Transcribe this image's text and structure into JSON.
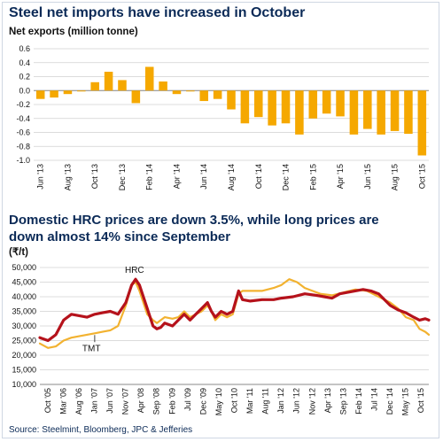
{
  "header": {
    "title1": "Steel net imports have increased in October",
    "sub1": "Net exports (million tonne)",
    "title2": "Domestic HRC prices are down 3.5%, while long prices are down almost 14% since September",
    "sub2": "(₹/t)",
    "source": "Source: Steelmint, Bloomberg, JPC & Jefferies"
  },
  "colors": {
    "bar": "#f5a800",
    "hrc": "#b5121b",
    "tmt": "#f2b230",
    "title": "#0b2a57"
  },
  "chart_data": [
    {
      "type": "bar",
      "ylabel": "Net exports (million tonne)",
      "ylim": [
        -1.0,
        0.6
      ],
      "yticks": [
        "0.6",
        "0.4",
        "0.2",
        "0.0",
        "-0.2",
        "-0.4",
        "-0.6",
        "-0.8",
        "-1.0"
      ],
      "grid": true,
      "categories": [
        "Jun '13",
        "Jul '13",
        "Aug '13",
        "Sep '13",
        "Oct '13",
        "Nov '13",
        "Dec '13",
        "Jan '14",
        "Feb '14",
        "Mar '14",
        "Apr '14",
        "May '14",
        "Jun '14",
        "Jul '14",
        "Aug '14",
        "Sep '14",
        "Oct '14",
        "Nov '14",
        "Dec '14",
        "Jan '15",
        "Feb '15",
        "Mar '15",
        "Apr '15",
        "May '15",
        "Jun '15",
        "Jul '15",
        "Aug '15",
        "Sep '15",
        "Oct '15"
      ],
      "xtick_labels": [
        "Jun '13",
        "Aug '13",
        "Oct '13",
        "Dec '13",
        "Feb '14",
        "Apr '14",
        "Jun '14",
        "Aug '14",
        "Oct '14",
        "Dec '14",
        "Feb '15",
        "Apr '15",
        "Jun '15",
        "Aug '15",
        "Oct '15"
      ],
      "values": [
        -0.12,
        -0.1,
        -0.05,
        0.0,
        0.12,
        0.27,
        0.15,
        -0.18,
        0.34,
        0.13,
        -0.05,
        0.0,
        -0.15,
        -0.12,
        -0.27,
        -0.47,
        -0.38,
        -0.5,
        -0.47,
        -0.63,
        -0.4,
        -0.33,
        -0.37,
        -0.63,
        -0.55,
        -0.63,
        -0.58,
        -0.62,
        -0.93
      ]
    },
    {
      "type": "line",
      "ylim": [
        10000,
        50000
      ],
      "yticks": [
        "50,000",
        "45,000",
        "40,000",
        "35,000",
        "30,000",
        "25,000",
        "20,000",
        "15,000",
        "10,000"
      ],
      "grid": true,
      "xlim": [
        2005.79,
        2015.79
      ],
      "x_tick_labels": [
        "Oct '05",
        "Mar '06",
        "Aug '06",
        "Jan '07",
        "Jun '07",
        "Nov '07",
        "Apr '08",
        "Sep '08",
        "Feb '09",
        "Jul '09",
        "Dec '09",
        "May '10",
        "Oct '10",
        "Mar '11",
        "Aug '11",
        "Jan '12",
        "Jun '12",
        "Nov '12",
        "Apr '13",
        "Sep '13",
        "Feb '14",
        "Jul '14",
        "Dec '14",
        "May '15",
        "Oct '15"
      ],
      "annotations": [
        "HRC",
        "TMT"
      ],
      "series": [
        {
          "name": "HRC",
          "x": [
            2005.79,
            2006.0,
            2006.2,
            2006.4,
            2006.6,
            2006.8,
            2007.0,
            2007.2,
            2007.4,
            2007.6,
            2007.8,
            2008.0,
            2008.15,
            2008.25,
            2008.35,
            2008.45,
            2008.55,
            2008.7,
            2008.8,
            2008.9,
            2009.0,
            2009.2,
            2009.35,
            2009.5,
            2009.65,
            2009.8,
            2009.95,
            2010.1,
            2010.2,
            2010.3,
            2010.45,
            2010.6,
            2010.75,
            2010.9,
            2011.0,
            2011.2,
            2011.5,
            2011.8,
            2012.0,
            2012.3,
            2012.6,
            2012.9,
            2013.1,
            2013.3,
            2013.5,
            2013.7,
            2013.9,
            2014.1,
            2014.3,
            2014.5,
            2014.8,
            2015.0,
            2015.2,
            2015.4,
            2015.55,
            2015.7,
            2015.79
          ],
          "values": [
            26000,
            25000,
            27000,
            32000,
            34000,
            33500,
            33000,
            34000,
            34500,
            35000,
            34000,
            38000,
            44000,
            46000,
            44000,
            40000,
            36000,
            30000,
            29000,
            29500,
            31000,
            30000,
            32000,
            34000,
            32000,
            34000,
            36000,
            38000,
            35000,
            33000,
            35000,
            34000,
            35000,
            42000,
            39000,
            38500,
            39000,
            39000,
            39500,
            40000,
            41000,
            40500,
            40000,
            39500,
            41000,
            41500,
            42000,
            42500,
            42000,
            41000,
            37000,
            35500,
            34500,
            33000,
            32000,
            32500,
            32000
          ]
        },
        {
          "name": "TMT",
          "x": [
            2005.79,
            2006.0,
            2006.2,
            2006.4,
            2006.6,
            2006.8,
            2007.0,
            2007.2,
            2007.4,
            2007.6,
            2007.8,
            2008.0,
            2008.15,
            2008.25,
            2008.35,
            2008.45,
            2008.55,
            2008.7,
            2008.8,
            2008.9,
            2009.0,
            2009.2,
            2009.35,
            2009.5,
            2009.65,
            2009.8,
            2009.95,
            2010.1,
            2010.2,
            2010.3,
            2010.45,
            2010.6,
            2010.75,
            2010.9,
            2011.0,
            2011.2,
            2011.5,
            2011.8,
            2012.0,
            2012.2,
            2012.4,
            2012.6,
            2012.8,
            2013.0,
            2013.3,
            2013.6,
            2013.9,
            2014.2,
            2014.5,
            2014.8,
            2015.0,
            2015.2,
            2015.4,
            2015.55,
            2015.7,
            2015.79
          ],
          "values": [
            24000,
            22500,
            23000,
            25000,
            26000,
            26500,
            27000,
            27500,
            28000,
            28500,
            30000,
            37000,
            44000,
            45000,
            42000,
            38000,
            34000,
            32000,
            31000,
            32000,
            33000,
            32500,
            33000,
            35000,
            33000,
            34000,
            35000,
            37000,
            35000,
            32000,
            34000,
            33000,
            34000,
            41000,
            42000,
            42000,
            42000,
            43000,
            44000,
            46000,
            45000,
            43000,
            42000,
            41000,
            40500,
            41500,
            42500,
            42000,
            40000,
            38000,
            36000,
            33000,
            32000,
            29000,
            28000,
            27000
          ]
        }
      ]
    }
  ]
}
